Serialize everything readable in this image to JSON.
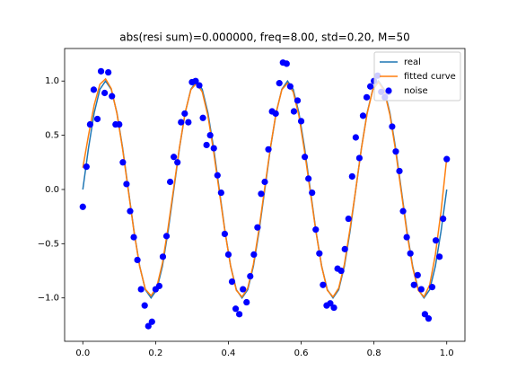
{
  "chart_data": {
    "type": "line",
    "title": "abs(resi sum)=0.000000, freq=8.00, std=0.20, M=50",
    "xlim": [
      -0.05,
      1.05
    ],
    "ylim": [
      -1.4,
      1.3
    ],
    "xticks": [
      {
        "value": 0,
        "label": "0.0"
      },
      {
        "value": 0.2,
        "label": "0.2"
      },
      {
        "value": 0.4,
        "label": "0.4"
      },
      {
        "value": 0.6,
        "label": "0.6"
      },
      {
        "value": 0.8,
        "label": "0.8"
      },
      {
        "value": 1,
        "label": "1.0"
      }
    ],
    "yticks": [
      {
        "value": -1,
        "label": "−1.0"
      },
      {
        "value": -0.5,
        "label": "−0.5"
      },
      {
        "value": 0,
        "label": "0.0"
      },
      {
        "value": 0.5,
        "label": "0.5"
      },
      {
        "value": 1,
        "label": "1.0"
      }
    ],
    "grid": false,
    "legend": "upper right",
    "series": [
      {
        "name": "real",
        "color": "#1f77b4",
        "style": "line",
        "x": [
          0,
          0.015625,
          0.03125,
          0.046875,
          0.0625,
          0.078125,
          0.09375,
          0.109375,
          0.125,
          0.140625,
          0.15625,
          0.171875,
          0.1875,
          0.203125,
          0.21875,
          0.234375,
          0.25,
          0.265625,
          0.28125,
          0.296875,
          0.3125,
          0.328125,
          0.34375,
          0.359375,
          0.375,
          0.390625,
          0.40625,
          0.421875,
          0.4375,
          0.453125,
          0.46875,
          0.484375,
          0.5,
          0.515625,
          0.53125,
          0.546875,
          0.5625,
          0.578125,
          0.59375,
          0.609375,
          0.625,
          0.640625,
          0.65625,
          0.671875,
          0.6875,
          0.703125,
          0.71875,
          0.734375,
          0.75,
          0.765625,
          0.78125,
          0.796875,
          0.8125,
          0.828125,
          0.84375,
          0.859375,
          0.875,
          0.890625,
          0.90625,
          0.921875,
          0.9375,
          0.953125,
          0.96875,
          0.984375,
          1
        ],
        "values": [
          0,
          0.383,
          0.707,
          0.924,
          1,
          0.924,
          0.707,
          0.383,
          0,
          -0.383,
          -0.707,
          -0.924,
          -1,
          -0.924,
          -0.707,
          -0.383,
          0,
          0.383,
          0.707,
          0.924,
          1,
          0.924,
          0.707,
          0.383,
          0,
          -0.383,
          -0.707,
          -0.924,
          -1,
          -0.924,
          -0.707,
          -0.383,
          0,
          0.383,
          0.707,
          0.924,
          1,
          0.924,
          0.707,
          0.383,
          0,
          -0.383,
          -0.707,
          -0.924,
          -1,
          -0.924,
          -0.707,
          -0.383,
          0,
          0.383,
          0.707,
          0.924,
          1,
          0.924,
          0.707,
          0.383,
          0,
          -0.383,
          -0.707,
          -0.924,
          -1,
          -0.924,
          -0.707,
          -0.383,
          0
        ]
      },
      {
        "name": "fitted curve",
        "color": "#ff7f0e",
        "style": "line",
        "x": [
          0,
          0.015625,
          0.03125,
          0.046875,
          0.0625,
          0.078125,
          0.09375,
          0.109375,
          0.125,
          0.140625,
          0.15625,
          0.171875,
          0.1875,
          0.203125,
          0.21875,
          0.234375,
          0.25,
          0.265625,
          0.28125,
          0.296875,
          0.3125,
          0.328125,
          0.34375,
          0.359375,
          0.375,
          0.390625,
          0.40625,
          0.421875,
          0.4375,
          0.453125,
          0.46875,
          0.484375,
          0.5,
          0.515625,
          0.53125,
          0.546875,
          0.5625,
          0.578125,
          0.59375,
          0.609375,
          0.625,
          0.640625,
          0.65625,
          0.671875,
          0.6875,
          0.703125,
          0.71875,
          0.734375,
          0.75,
          0.765625,
          0.78125,
          0.796875,
          0.8125,
          0.828125,
          0.84375,
          0.859375,
          0.875,
          0.890625,
          0.90625,
          0.921875,
          0.9375,
          0.953125,
          0.96875,
          0.984375,
          1
        ],
        "values": [
          0.2,
          0.5,
          0.78,
          0.97,
          1.02,
          0.93,
          0.7,
          0.37,
          -0.01,
          -0.39,
          -0.71,
          -0.92,
          -0.98,
          -0.9,
          -0.68,
          -0.35,
          0.02,
          0.39,
          0.71,
          0.92,
          0.98,
          0.9,
          0.68,
          0.35,
          -0.02,
          -0.39,
          -0.71,
          -0.93,
          -0.99,
          -0.91,
          -0.69,
          -0.36,
          0.02,
          0.39,
          0.71,
          0.92,
          0.98,
          0.9,
          0.68,
          0.35,
          -0.02,
          -0.39,
          -0.71,
          -0.93,
          -0.99,
          -0.91,
          -0.69,
          -0.36,
          0,
          0.38,
          0.7,
          0.92,
          0.99,
          0.91,
          0.69,
          0.36,
          -0.02,
          -0.4,
          -0.72,
          -0.93,
          -0.99,
          -0.88,
          -0.6,
          -0.2,
          0.29
        ]
      },
      {
        "name": "noise",
        "color": "#0000ff",
        "style": "points",
        "x": [
          0,
          0.01,
          0.02,
          0.03,
          0.04,
          0.05,
          0.06,
          0.07,
          0.08,
          0.09,
          0.1,
          0.11,
          0.12,
          0.13,
          0.14,
          0.15,
          0.16,
          0.17,
          0.18,
          0.19,
          0.2,
          0.21,
          0.22,
          0.23,
          0.24,
          0.25,
          0.26,
          0.27,
          0.28,
          0.29,
          0.3,
          0.31,
          0.32,
          0.33,
          0.34,
          0.35,
          0.36,
          0.37,
          0.38,
          0.39,
          0.4,
          0.41,
          0.42,
          0.43,
          0.44,
          0.45,
          0.46,
          0.47,
          0.48,
          0.49,
          0.5,
          0.51,
          0.52,
          0.53,
          0.54,
          0.55,
          0.56,
          0.57,
          0.58,
          0.59,
          0.6,
          0.61,
          0.62,
          0.63,
          0.64,
          0.65,
          0.66,
          0.67,
          0.68,
          0.69,
          0.7,
          0.71,
          0.72,
          0.73,
          0.74,
          0.75,
          0.76,
          0.77,
          0.78,
          0.79,
          0.8,
          0.81,
          0.82,
          0.83,
          0.84,
          0.85,
          0.86,
          0.87,
          0.88,
          0.89,
          0.9,
          0.91,
          0.92,
          0.93,
          0.94,
          0.95,
          0.96,
          0.97,
          0.98,
          0.99,
          1
        ],
        "values": [
          -0.16,
          0.21,
          0.6,
          0.92,
          0.65,
          1.09,
          0.89,
          1.08,
          0.86,
          0.6,
          0.6,
          0.25,
          0.05,
          -0.2,
          -0.44,
          -0.65,
          -0.92,
          -1.07,
          -1.26,
          -1.22,
          -0.92,
          -0.89,
          -0.62,
          -0.43,
          0.07,
          0.3,
          0.25,
          0.62,
          0.7,
          0.62,
          0.99,
          1,
          0.96,
          0.66,
          0.41,
          0.5,
          0.38,
          0.13,
          -0.03,
          -0.41,
          -0.6,
          -0.85,
          -1.1,
          -1.15,
          -0.92,
          -1.04,
          -0.8,
          -0.6,
          -0.35,
          -0.04,
          0.07,
          0.37,
          0.72,
          0.7,
          0.98,
          1.17,
          1.16,
          0.95,
          0.72,
          0.82,
          0.63,
          0.3,
          0.1,
          -0.03,
          -0.37,
          -0.59,
          -0.88,
          -1.07,
          -1.05,
          -1.09,
          -0.73,
          -0.75,
          -0.55,
          -0.27,
          0.12,
          0.48,
          0.29,
          0.68,
          0.85,
          0.95,
          1,
          1.05,
          0.9,
          0.85,
          0.9,
          0.58,
          0.35,
          0.17,
          -0.2,
          -0.44,
          -0.59,
          -0.88,
          -0.79,
          -0.92,
          -1.15,
          -1.19,
          -0.9,
          -0.47,
          -0.62,
          -0.27,
          0.28
        ]
      }
    ]
  }
}
